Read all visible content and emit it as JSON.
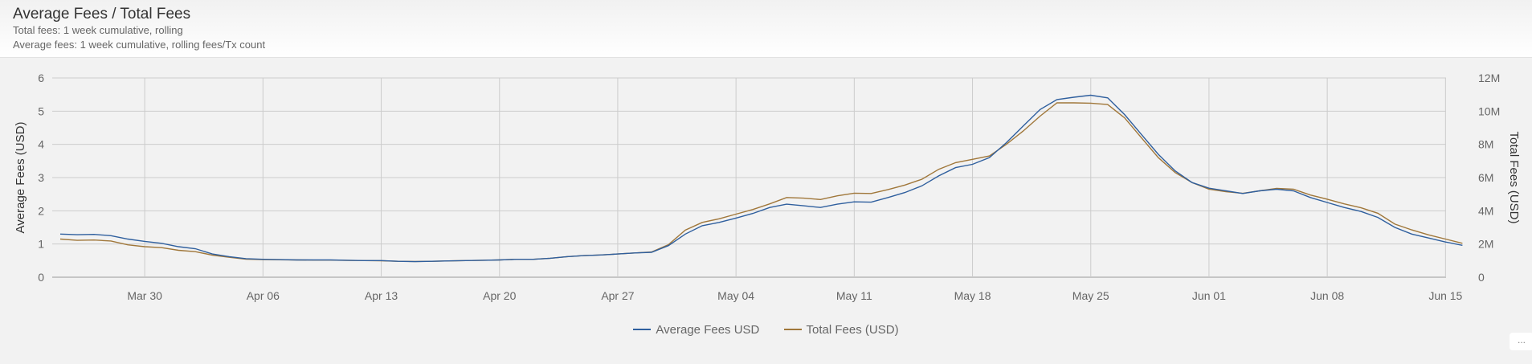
{
  "header": {
    "title": "Average Fees / Total Fees",
    "subtitle_1": "Total fees: 1 week cumulative, rolling",
    "subtitle_2": "Average fees: 1 week cumulative, rolling fees/Tx count"
  },
  "more_button": {
    "label": "...",
    "icon": "ellipsis-icon"
  },
  "colors": {
    "average": "#2f5f9e",
    "total": "#a0773a",
    "grid": "#cccccc",
    "axis": "#999999",
    "tick_text": "#666666"
  },
  "chart_data": {
    "type": "line",
    "title": "Average Fees / Total Fees",
    "xlabel": "",
    "ylabel": "Average Fees (USD)",
    "y2label": "Total Fees (USD)",
    "ylim": [
      0,
      6
    ],
    "y2lim": [
      0,
      12000000
    ],
    "yticks": [
      "0",
      "1",
      "2",
      "3",
      "4",
      "5",
      "6"
    ],
    "y2ticks": [
      "0",
      "2M",
      "4M",
      "6M",
      "8M",
      "10M",
      "12M"
    ],
    "xticks": [
      "Mar 30",
      "Apr 06",
      "Apr 13",
      "Apr 20",
      "Apr 27",
      "May 04",
      "May 11",
      "May 18",
      "May 25",
      "Jun 01",
      "Jun 08",
      "Jun 15"
    ],
    "grid": true,
    "legend_position": "bottom",
    "x": [
      "Mar 25",
      "Mar 26",
      "Mar 27",
      "Mar 28",
      "Mar 29",
      "Mar 30",
      "Mar 31",
      "Apr 01",
      "Apr 02",
      "Apr 03",
      "Apr 04",
      "Apr 05",
      "Apr 06",
      "Apr 07",
      "Apr 08",
      "Apr 09",
      "Apr 10",
      "Apr 11",
      "Apr 12",
      "Apr 13",
      "Apr 14",
      "Apr 15",
      "Apr 16",
      "Apr 17",
      "Apr 18",
      "Apr 19",
      "Apr 20",
      "Apr 21",
      "Apr 22",
      "Apr 23",
      "Apr 24",
      "Apr 25",
      "Apr 26",
      "Apr 27",
      "Apr 28",
      "Apr 29",
      "Apr 30",
      "May 01",
      "May 02",
      "May 03",
      "May 04",
      "May 05",
      "May 06",
      "May 07",
      "May 08",
      "May 09",
      "May 10",
      "May 11",
      "May 12",
      "May 13",
      "May 14",
      "May 15",
      "May 16",
      "May 17",
      "May 18",
      "May 19",
      "May 20",
      "May 21",
      "May 22",
      "May 23",
      "May 24",
      "May 25",
      "May 26",
      "May 27",
      "May 28",
      "May 29",
      "May 30",
      "May 31",
      "Jun 01",
      "Jun 02",
      "Jun 03",
      "Jun 04",
      "Jun 05",
      "Jun 06",
      "Jun 07",
      "Jun 08",
      "Jun 09",
      "Jun 10",
      "Jun 11",
      "Jun 12",
      "Jun 13",
      "Jun 14",
      "Jun 15",
      "Jun 16"
    ],
    "series": [
      {
        "name": "Average Fees USD",
        "axis": "left",
        "color": "#2f5f9e",
        "values": [
          1.3,
          1.28,
          1.29,
          1.25,
          1.15,
          1.08,
          1.02,
          0.92,
          0.86,
          0.7,
          0.62,
          0.56,
          0.54,
          0.53,
          0.52,
          0.52,
          0.52,
          0.51,
          0.5,
          0.5,
          0.48,
          0.47,
          0.48,
          0.49,
          0.5,
          0.51,
          0.52,
          0.54,
          0.54,
          0.57,
          0.62,
          0.65,
          0.67,
          0.7,
          0.73,
          0.75,
          0.95,
          1.3,
          1.55,
          1.65,
          1.78,
          1.92,
          2.1,
          2.2,
          2.15,
          2.1,
          2.2,
          2.27,
          2.26,
          2.4,
          2.55,
          2.75,
          3.05,
          3.3,
          3.4,
          3.6,
          4.05,
          4.55,
          5.05,
          5.35,
          5.42,
          5.48,
          5.4,
          4.9,
          4.3,
          3.7,
          3.2,
          2.85,
          2.68,
          2.6,
          2.52,
          2.6,
          2.65,
          2.6,
          2.4,
          2.25,
          2.1,
          1.98,
          1.8,
          1.5,
          1.3,
          1.18,
          1.06,
          0.96
        ]
      },
      {
        "name": "Total Fees (USD)",
        "axis": "right",
        "color": "#a0773a",
        "values": [
          2300000,
          2220000,
          2240000,
          2180000,
          1950000,
          1840000,
          1780000,
          1620000,
          1540000,
          1330000,
          1200000,
          1090000,
          1060000,
          1050000,
          1040000,
          1030000,
          1030000,
          1010000,
          1000000,
          990000,
          960000,
          950000,
          960000,
          980000,
          1000000,
          1020000,
          1040000,
          1080000,
          1080000,
          1140000,
          1240000,
          1300000,
          1340000,
          1400000,
          1460000,
          1520000,
          1960000,
          2840000,
          3300000,
          3520000,
          3800000,
          4080000,
          4420000,
          4800000,
          4760000,
          4680000,
          4900000,
          5060000,
          5040000,
          5280000,
          5550000,
          5900000,
          6500000,
          6900000,
          7100000,
          7300000,
          8000000,
          8800000,
          9700000,
          10500000,
          10500000,
          10480000,
          10400000,
          9600000,
          8400000,
          7200000,
          6300000,
          5700000,
          5300000,
          5150000,
          5050000,
          5200000,
          5350000,
          5300000,
          4950000,
          4700000,
          4420000,
          4180000,
          3850000,
          3200000,
          2850000,
          2550000,
          2300000,
          2040000
        ]
      }
    ]
  }
}
